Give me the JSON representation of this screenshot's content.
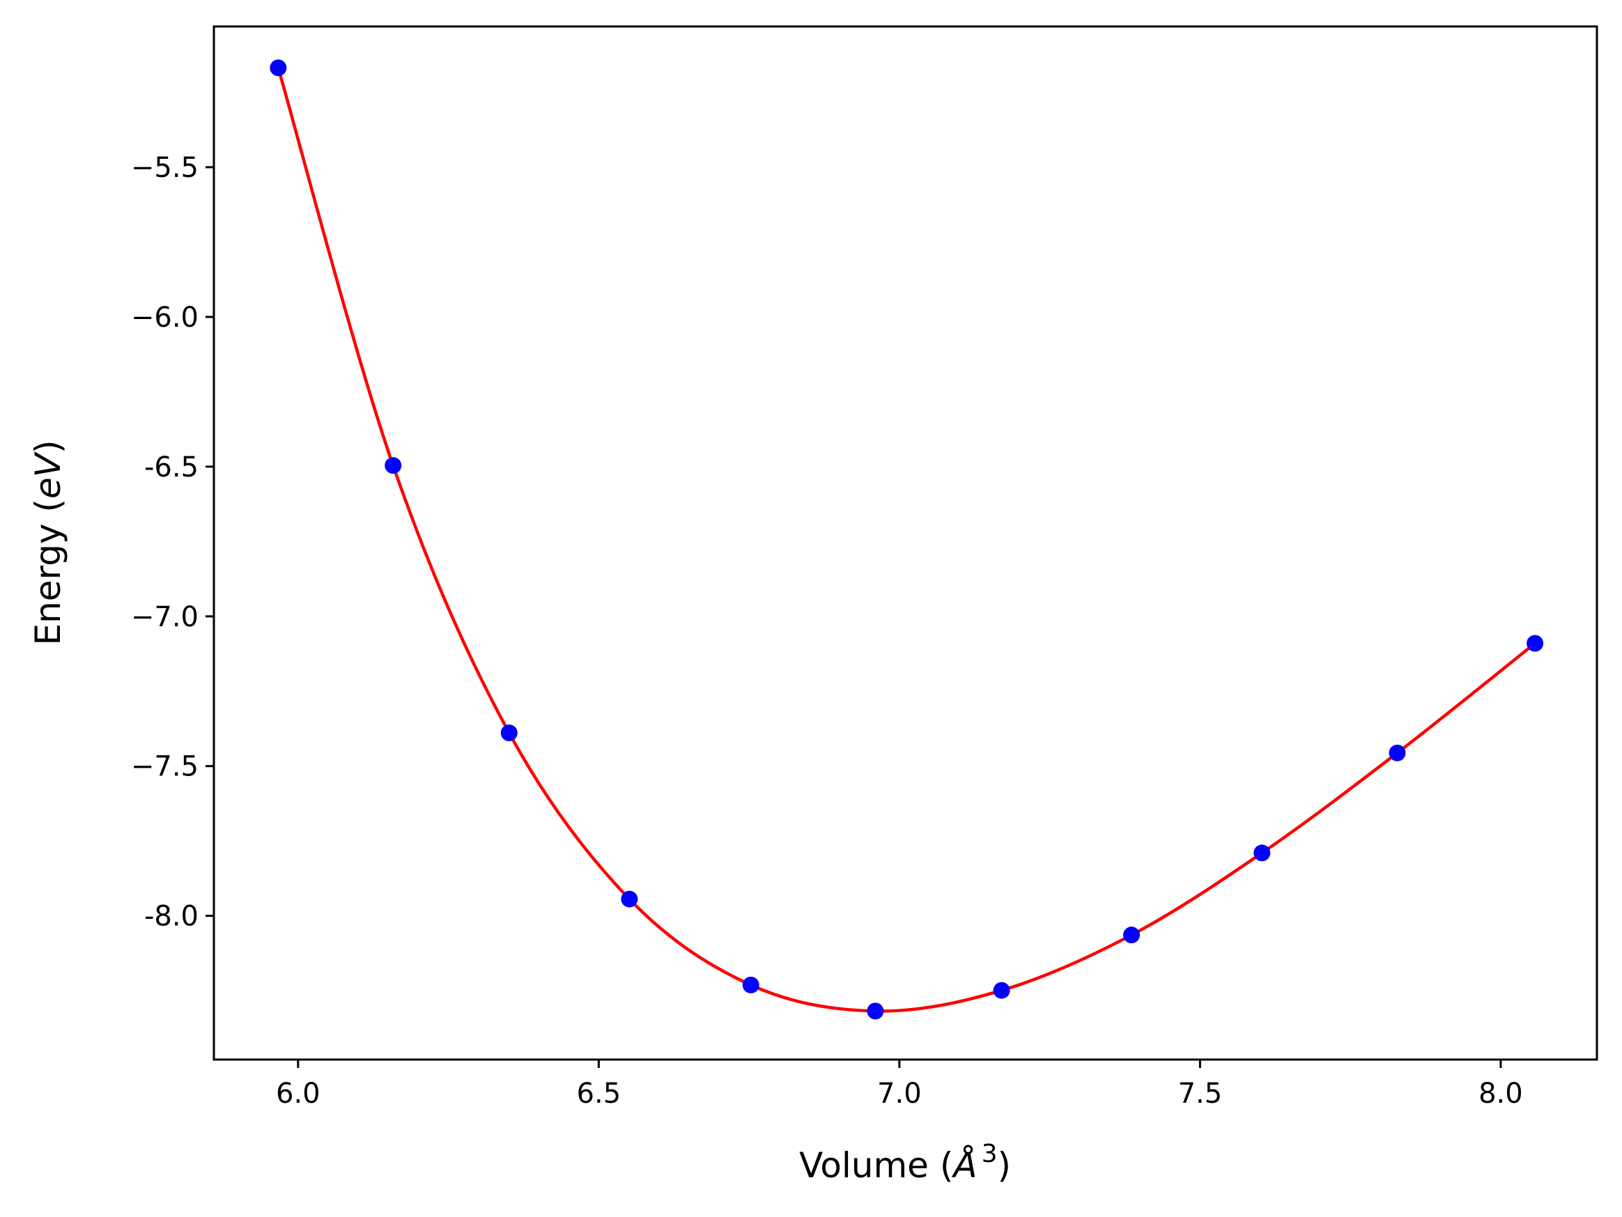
{
  "chart_data": {
    "type": "line",
    "title": "",
    "xlabel": {
      "prefix": "Volume (",
      "symbol": "Å",
      "superscript": "3",
      "suffix": ")"
    },
    "ylabel": {
      "prefix": "Energy (",
      "symbol": "eV",
      "suffix": ")"
    },
    "xlim": [
      5.86,
      8.16
    ],
    "ylim": [
      -8.48,
      -5.03
    ],
    "xticks": [
      6.0,
      6.5,
      7.0,
      7.5,
      8.0
    ],
    "xtick_labels": [
      "6.0",
      "6.5",
      "7.0",
      "7.5",
      "8.0"
    ],
    "yticks": [
      -5.5,
      -6.0,
      -6.5,
      -7.0,
      -7.5,
      -8.0
    ],
    "ytick_labels": [
      "−5.5",
      "−6.0",
      "-6.5",
      "−7.0",
      "−7.5",
      "-8.0"
    ],
    "grid": false,
    "series": [
      {
        "kind": "scatter",
        "color": "#0000ff",
        "x": [
          5.967,
          6.158,
          6.351,
          6.551,
          6.753,
          6.96,
          7.17,
          7.386,
          7.603,
          7.828,
          8.057
        ],
        "y": [
          -5.168,
          -6.496,
          -7.389,
          -7.944,
          -8.231,
          -8.318,
          -8.249,
          -8.064,
          -7.79,
          -7.456,
          -7.09
        ]
      },
      {
        "kind": "line",
        "color": "#ff0000",
        "fit": "smooth curve through the data points"
      }
    ]
  }
}
